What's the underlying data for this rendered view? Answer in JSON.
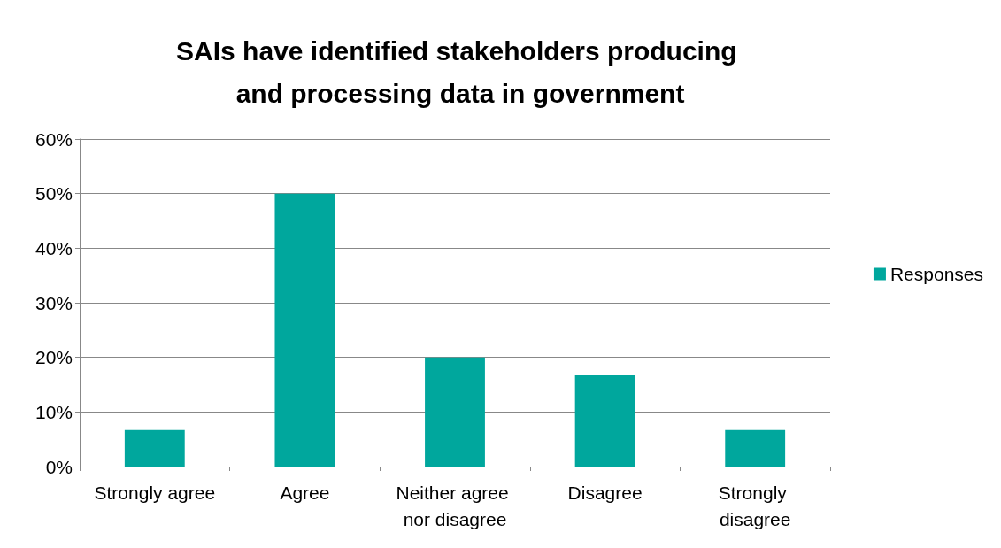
{
  "chart_data": {
    "type": "bar",
    "title": "SAIs have identified stakeholders producing and processing data in government",
    "categories": [
      "Strongly agree",
      "Agree",
      "Neither agree nor disagree",
      "Disagree",
      "Strongly disagree"
    ],
    "series": [
      {
        "name": "Responses",
        "color": "#00a79d",
        "values": [
          6.7,
          50,
          20,
          16.7,
          6.7
        ]
      }
    ],
    "ylim": [
      0,
      60
    ],
    "yticks": [
      {
        "value": 0,
        "label": "0%"
      },
      {
        "value": 10,
        "label": "10%"
      },
      {
        "value": 20,
        "label": "20%"
      },
      {
        "value": 30,
        "label": "30%"
      },
      {
        "value": 40,
        "label": "40%"
      },
      {
        "value": 50,
        "label": "50%"
      },
      {
        "value": 60,
        "label": "60%"
      }
    ],
    "grid": "y",
    "legend": "right"
  }
}
